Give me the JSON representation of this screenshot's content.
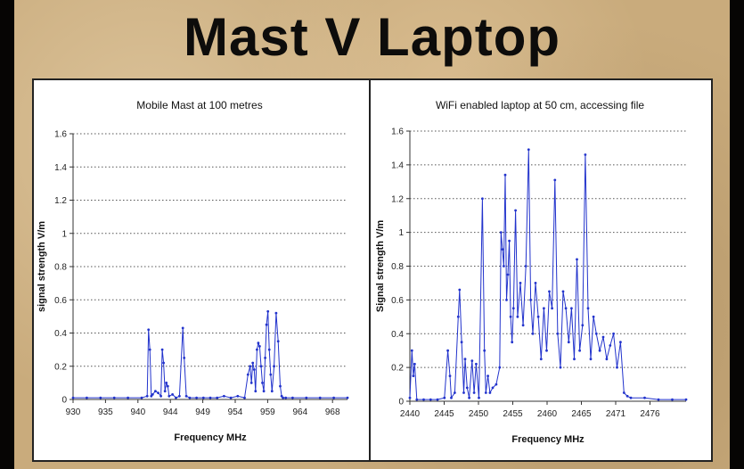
{
  "slide": {
    "title": "Mast V Laptop"
  },
  "chart_data": [
    {
      "type": "line",
      "title": "Mobile Mast at 100 metres",
      "xlabel": "Frequency  MHz",
      "ylabel": "signal strength  V/m",
      "xlim": [
        930,
        970
      ],
      "ylim": [
        0,
        1.6
      ],
      "yticks": [
        "0",
        "0.2",
        "0.4",
        "0.6",
        "0.8",
        "1",
        "1.2",
        "1.4",
        "1.6"
      ],
      "xticks": [
        "930",
        "935",
        "940",
        "944",
        "949",
        "954",
        "959",
        "964",
        "968"
      ],
      "grid": "horizontal dotted",
      "color": "#2233cc",
      "series": [
        {
          "x": [
            930,
            932,
            934,
            936,
            938,
            940,
            940.8,
            941.0,
            941.2,
            941.4,
            941.6,
            942.0,
            942.4,
            942.8,
            943.0,
            943.2,
            943.4,
            943.6,
            943.8,
            944.0,
            944.5,
            945.0,
            945.5,
            946.0,
            946.2,
            946.5,
            947,
            948,
            949,
            950,
            951,
            952,
            953,
            954,
            955,
            955.5,
            955.8,
            956.0,
            956.2,
            956.4,
            956.6,
            956.8,
            957.0,
            957.2,
            957.4,
            957.6,
            957.8,
            958.0,
            958.2,
            958.4,
            958.6,
            958.8,
            959.0,
            959.3,
            959.6,
            959.9,
            960.2,
            960.4,
            960.6,
            961,
            962,
            964,
            966,
            968,
            970
          ],
          "y": [
            0.01,
            0.01,
            0.01,
            0.01,
            0.01,
            0.01,
            0.02,
            0.42,
            0.3,
            0.02,
            0.03,
            0.05,
            0.04,
            0.02,
            0.3,
            0.22,
            0.05,
            0.1,
            0.08,
            0.02,
            0.03,
            0.01,
            0.02,
            0.43,
            0.25,
            0.02,
            0.01,
            0.01,
            0.01,
            0.01,
            0.01,
            0.02,
            0.01,
            0.02,
            0.01,
            0.15,
            0.2,
            0.1,
            0.22,
            0.18,
            0.05,
            0.3,
            0.34,
            0.32,
            0.2,
            0.1,
            0.05,
            0.25,
            0.45,
            0.53,
            0.3,
            0.15,
            0.05,
            0.2,
            0.52,
            0.35,
            0.08,
            0.02,
            0.01,
            0.01,
            0.01,
            0.01,
            0.01,
            0.01,
            0.01
          ]
        }
      ]
    },
    {
      "type": "line",
      "title": "WiFi enabled laptop at 50 cm, accessing file",
      "xlabel": "Frequency  MHz",
      "ylabel": "Signal strength  V/m",
      "xlim": [
        2440,
        2480
      ],
      "ylim": [
        0,
        1.6
      ],
      "yticks": [
        "0",
        "0.2",
        "0.4",
        "0.6",
        "0.8",
        "1",
        "1.2",
        "1.4",
        "1.6"
      ],
      "xticks": [
        "2440",
        "2445",
        "2450",
        "2455",
        "2460",
        "2465",
        "2471",
        "2476"
      ],
      "grid": "horizontal dotted",
      "color": "#2233cc",
      "series": [
        {
          "x": [
            2440,
            2440.3,
            2440.5,
            2440.7,
            2441,
            2442,
            2443,
            2444,
            2445,
            2445.5,
            2445.8,
            2446,
            2446.5,
            2447,
            2447.2,
            2447.5,
            2447.8,
            2448,
            2448.3,
            2448.6,
            2449,
            2449.3,
            2449.6,
            2450,
            2450.5,
            2450.8,
            2451,
            2451.3,
            2451.6,
            2452,
            2452.5,
            2453,
            2453.2,
            2453.4,
            2453.6,
            2453.8,
            2454,
            2454.2,
            2454.4,
            2454.6,
            2454.8,
            2455,
            2455.3,
            2455.6,
            2456,
            2456.4,
            2456.8,
            2457.2,
            2457.5,
            2457.8,
            2458.2,
            2458.6,
            2459,
            2459.4,
            2459.8,
            2460.2,
            2460.6,
            2461,
            2461.4,
            2461.8,
            2462.2,
            2462.6,
            2463,
            2463.4,
            2463.8,
            2464.2,
            2464.6,
            2465,
            2465.4,
            2465.8,
            2466.2,
            2466.6,
            2467,
            2467.5,
            2468,
            2468.5,
            2469,
            2469.5,
            2470,
            2470.5,
            2471,
            2471.5,
            2472,
            2474,
            2476,
            2478,
            2480
          ],
          "y": [
            0.02,
            0.3,
            0.15,
            0.22,
            0.01,
            0.01,
            0.01,
            0.01,
            0.02,
            0.3,
            0.15,
            0.02,
            0.05,
            0.5,
            0.66,
            0.35,
            0.05,
            0.25,
            0.08,
            0.02,
            0.24,
            0.05,
            0.22,
            0.02,
            1.2,
            0.3,
            0.05,
            0.15,
            0.05,
            0.08,
            0.1,
            0.2,
            1.0,
            0.9,
            0.8,
            1.34,
            0.6,
            0.75,
            0.95,
            0.5,
            0.35,
            0.55,
            1.13,
            0.5,
            0.7,
            0.45,
            0.8,
            1.49,
            0.6,
            0.4,
            0.7,
            0.5,
            0.25,
            0.55,
            0.3,
            0.65,
            0.55,
            1.31,
            0.4,
            0.2,
            0.65,
            0.55,
            0.35,
            0.55,
            0.25,
            0.84,
            0.3,
            0.45,
            1.46,
            0.55,
            0.25,
            0.5,
            0.4,
            0.3,
            0.38,
            0.25,
            0.33,
            0.4,
            0.2,
            0.35,
            0.05,
            0.03,
            0.02,
            0.02,
            0.01,
            0.01,
            0.01
          ]
        }
      ]
    }
  ]
}
